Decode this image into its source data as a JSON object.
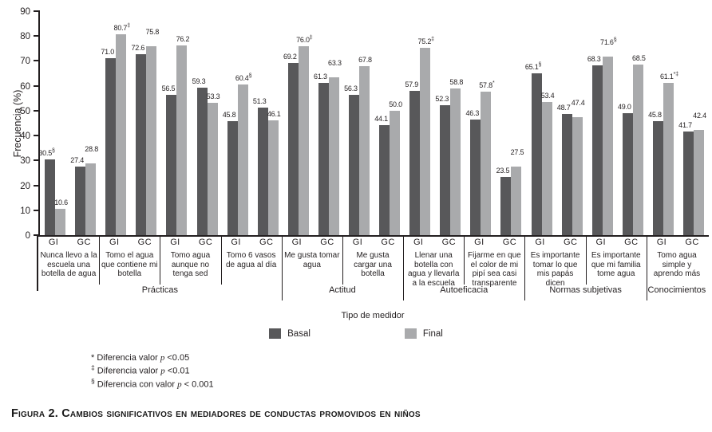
{
  "caption": {
    "text": "Figura 2. Cambios significativos en mediadores de conductas promovidos en niños"
  },
  "footnotes": [
    {
      "sym": "*",
      "text": "Diferencia valor p <0.05"
    },
    {
      "sym": "‡",
      "text": "Diferencia valor p <0.01"
    },
    {
      "sym": "§",
      "text": "Diferencia con valor p < 0.001"
    }
  ],
  "chart_data": {
    "type": "bar",
    "title": "",
    "ylabel": "Frecuencia (%)",
    "xlabel": "Tipo de medidor",
    "ylim": [
      0,
      90
    ],
    "ytick_step": 10,
    "grid": false,
    "legend_position": "bottom",
    "legend": [
      {
        "name": "Basal",
        "color": "#58585a"
      },
      {
        "name": "Final",
        "color": "#a9aaac"
      }
    ],
    "group_names": [
      "GI",
      "GC"
    ],
    "sections": [
      {
        "label": "Prácticas",
        "span": 4
      },
      {
        "label": "Actitud",
        "span": 2
      },
      {
        "label": "Autoeficacia",
        "span": 2
      },
      {
        "label": "Normas subjetivas",
        "span": 2
      },
      {
        "label": "Conocimientos",
        "span": 1
      }
    ],
    "categories": [
      {
        "label": "Nunca llevo a la escuela una botella de agua",
        "groups": [
          {
            "name": "GI",
            "basal": 30.5,
            "basal_sup": "§",
            "final": 10.6,
            "final_sup": ""
          },
          {
            "name": "GC",
            "basal": 27.4,
            "basal_sup": "",
            "final": 28.8,
            "final_sup": ""
          }
        ]
      },
      {
        "label": "Tomo el agua que contiene mi botella",
        "groups": [
          {
            "name": "GI",
            "basal": 71.0,
            "basal_sup": "",
            "final": 80.7,
            "final_sup": "‡"
          },
          {
            "name": "GC",
            "basal": 72.6,
            "basal_sup": "",
            "final": 75.8,
            "final_sup": ""
          }
        ]
      },
      {
        "label": "Tomo agua aunque no tenga sed",
        "groups": [
          {
            "name": "GI",
            "basal": 56.5,
            "basal_sup": "",
            "final": 76.2,
            "final_sup": ""
          },
          {
            "name": "GC",
            "basal": 59.3,
            "basal_sup": "",
            "final": 53.3,
            "final_sup": ""
          }
        ]
      },
      {
        "label": "Tomo 6 vasos de agua al día",
        "groups": [
          {
            "name": "GI",
            "basal": 45.8,
            "basal_sup": "",
            "final": 60.4,
            "final_sup": "§"
          },
          {
            "name": "GC",
            "basal": 51.3,
            "basal_sup": "",
            "final": 46.1,
            "final_sup": ""
          }
        ]
      },
      {
        "label": "Me gusta tomar agua",
        "groups": [
          {
            "name": "GI",
            "basal": 69.2,
            "basal_sup": "",
            "final": 76.0,
            "final_sup": "‡"
          },
          {
            "name": "GC",
            "basal": 61.3,
            "basal_sup": "",
            "final": 63.3,
            "final_sup": ""
          }
        ]
      },
      {
        "label": "Me gusta cargar una botella",
        "groups": [
          {
            "name": "GI",
            "basal": 56.3,
            "basal_sup": "",
            "final": 67.8,
            "final_sup": ""
          },
          {
            "name": "GC",
            "basal": 44.1,
            "basal_sup": "",
            "final": 50.0,
            "final_sup": ""
          }
        ]
      },
      {
        "label": "Llenar una botella con agua y llevarla a la escuela",
        "groups": [
          {
            "name": "GI",
            "basal": 57.9,
            "basal_sup": "",
            "final": 75.2,
            "final_sup": "‡"
          },
          {
            "name": "GC",
            "basal": 52.3,
            "basal_sup": "",
            "final": 58.8,
            "final_sup": ""
          }
        ]
      },
      {
        "label": "Fijarme en que el color de mi pipí sea casi transparente",
        "groups": [
          {
            "name": "GI",
            "basal": 46.3,
            "basal_sup": "",
            "final": 57.8,
            "final_sup": "*"
          },
          {
            "name": "GC",
            "basal": 23.5,
            "basal_sup": "",
            "final": 27.5,
            "final_sup": ""
          }
        ]
      },
      {
        "label": "Es importante tomar lo que mis papás dicen",
        "groups": [
          {
            "name": "GI",
            "basal": 65.1,
            "basal_sup": "§",
            "final": 53.4,
            "final_sup": ""
          },
          {
            "name": "GC",
            "basal": 48.7,
            "basal_sup": "",
            "final": 47.4,
            "final_sup": ""
          }
        ]
      },
      {
        "label": "Es importante que mi familia tome agua",
        "groups": [
          {
            "name": "GI",
            "basal": 68.3,
            "basal_sup": "",
            "final": 71.6,
            "final_sup": "§"
          },
          {
            "name": "GC",
            "basal": 49.0,
            "basal_sup": "",
            "final": 68.5,
            "final_sup": ""
          }
        ]
      },
      {
        "label": "Tomo agua simple y aprendo más",
        "groups": [
          {
            "name": "GI",
            "basal": 45.8,
            "basal_sup": "",
            "final": 61.1,
            "final_sup": "*‡"
          },
          {
            "name": "GC",
            "basal": 41.7,
            "basal_sup": "",
            "final": 42.4,
            "final_sup": ""
          }
        ]
      }
    ]
  }
}
